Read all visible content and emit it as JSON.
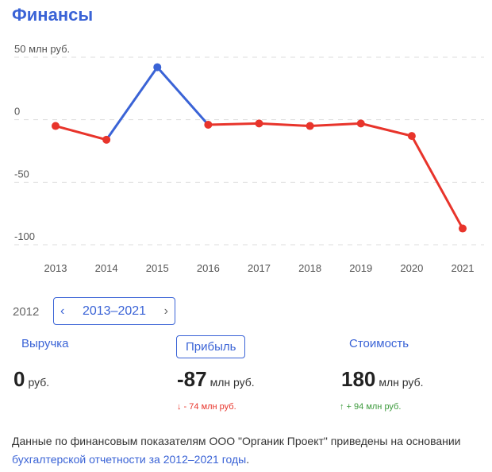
{
  "title": "Финансы",
  "chart_data": {
    "type": "line",
    "x": [
      "2013",
      "2014",
      "2015",
      "2016",
      "2017",
      "2018",
      "2019",
      "2020",
      "2021"
    ],
    "y": [
      -5,
      -16,
      42,
      -4,
      -3,
      -5,
      -3,
      -13,
      -87
    ],
    "y_ticks": [
      {
        "value": 50,
        "label": "50 млн руб."
      },
      {
        "value": 0,
        "label": "0"
      },
      {
        "value": -50,
        "label": "-50"
      },
      {
        "value": -100,
        "label": "-100"
      }
    ],
    "ylim": [
      -100,
      50
    ],
    "grid": true,
    "colors": {
      "negative": "#e8342b",
      "positive": "#3a63d6",
      "grid": "#dddddd"
    }
  },
  "period": {
    "prev_year": "2012",
    "current": "2013–2021",
    "prev_arrow": "‹",
    "next_arrow": "›"
  },
  "metrics": {
    "revenue": {
      "tab": "Выручка",
      "value": "0",
      "unit": "руб."
    },
    "profit": {
      "tab": "Прибыль",
      "value": "-87",
      "unit": "млн руб.",
      "change": "↓ - 74 млн руб."
    },
    "value": {
      "tab": "Стоимость",
      "value": "180",
      "unit": "млн руб.",
      "change": "↑ + 94 млн руб."
    }
  },
  "footnote": {
    "text_prefix": "Данные по финансовым показателям ООО \"Органик Проект\" приведены на основании ",
    "link": "бухгалтерской отчетности за 2012–2021 годы",
    "text_suffix": "."
  }
}
